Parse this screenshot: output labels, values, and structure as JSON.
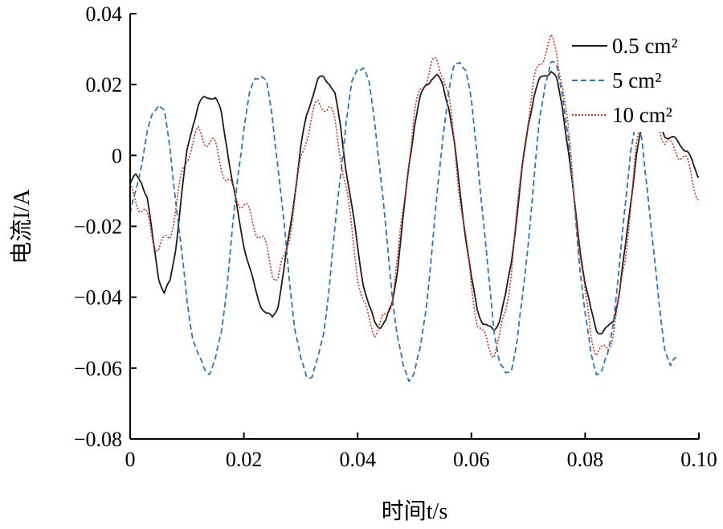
{
  "chart_data": {
    "type": "line",
    "xlabel": "时间t/s",
    "ylabel": "电流I/A",
    "xlim": [
      0,
      0.1
    ],
    "ylim": [
      -0.08,
      0.04
    ],
    "x_ticks": [
      "0",
      "0.02",
      "0.04",
      "0.06",
      "0.08",
      "0.10"
    ],
    "y_ticks": [
      "0.04",
      "0.02",
      "0",
      "−0.02",
      "−0.04",
      "−0.06",
      "−0.08"
    ],
    "grid": false,
    "legend_position": "top-right",
    "series": [
      {
        "name": "0.5 cm²",
        "color": "#231815",
        "style": "solid",
        "x": [
          0.0,
          0.001,
          0.002,
          0.003,
          0.004,
          0.005,
          0.006,
          0.007,
          0.008,
          0.009,
          0.01,
          0.011,
          0.012,
          0.013,
          0.014,
          0.015,
          0.016,
          0.017,
          0.018,
          0.019,
          0.02,
          0.021,
          0.022,
          0.023,
          0.024,
          0.025,
          0.026,
          0.027,
          0.028,
          0.029,
          0.03,
          0.031,
          0.032,
          0.033,
          0.034,
          0.035,
          0.036,
          0.037,
          0.038,
          0.039,
          0.04,
          0.041,
          0.042,
          0.043,
          0.044,
          0.045,
          0.046,
          0.047,
          0.048,
          0.049,
          0.05,
          0.051,
          0.052,
          0.053,
          0.054,
          0.055,
          0.056,
          0.057,
          0.058,
          0.059,
          0.06,
          0.061,
          0.062,
          0.063,
          0.064,
          0.065,
          0.066,
          0.067,
          0.068,
          0.069,
          0.07,
          0.071,
          0.072,
          0.073,
          0.074,
          0.075,
          0.076,
          0.077,
          0.078,
          0.079,
          0.08,
          0.081,
          0.082,
          0.083,
          0.084,
          0.085,
          0.086,
          0.087,
          0.088,
          0.089,
          0.09,
          0.091,
          0.092,
          0.093,
          0.094,
          0.095,
          0.096,
          0.097,
          0.098,
          0.099,
          0.1
        ],
        "y": [
          -0.008,
          -0.006,
          -0.007,
          -0.012,
          -0.024,
          -0.034,
          -0.039,
          -0.036,
          -0.026,
          -0.012,
          0.001,
          0.009,
          0.014,
          0.016,
          0.017,
          0.016,
          0.012,
          0.003,
          -0.008,
          -0.017,
          -0.025,
          -0.032,
          -0.038,
          -0.042,
          -0.045,
          -0.046,
          -0.042,
          -0.033,
          -0.022,
          -0.01,
          0.002,
          0.011,
          0.017,
          0.021,
          0.022,
          0.021,
          0.017,
          0.008,
          -0.004,
          -0.015,
          -0.026,
          -0.036,
          -0.043,
          -0.047,
          -0.048,
          -0.047,
          -0.042,
          -0.032,
          -0.018,
          -0.003,
          0.009,
          0.016,
          0.02,
          0.022,
          0.022,
          0.02,
          0.014,
          0.003,
          -0.01,
          -0.023,
          -0.035,
          -0.043,
          -0.047,
          -0.049,
          -0.049,
          -0.046,
          -0.04,
          -0.03,
          -0.017,
          -0.003,
          0.009,
          0.017,
          0.021,
          0.023,
          0.024,
          0.021,
          0.014,
          0.002,
          -0.012,
          -0.025,
          -0.036,
          -0.044,
          -0.049,
          -0.05,
          -0.049,
          -0.046,
          -0.039,
          -0.027,
          -0.013,
          0.0,
          0.008,
          0.011,
          0.011,
          0.009,
          0.006,
          0.005,
          0.004,
          0.003,
          0.001,
          -0.003,
          -0.006
        ]
      },
      {
        "name": "5 cm²",
        "color": "#2e75b6",
        "style": "dashed",
        "x": [
          0.0,
          0.001,
          0.002,
          0.003,
          0.004,
          0.005,
          0.006,
          0.007,
          0.008,
          0.009,
          0.01,
          0.011,
          0.012,
          0.013,
          0.014,
          0.015,
          0.016,
          0.017,
          0.018,
          0.019,
          0.02,
          0.021,
          0.022,
          0.023,
          0.024,
          0.025,
          0.026,
          0.027,
          0.028,
          0.029,
          0.03,
          0.031,
          0.032,
          0.033,
          0.034,
          0.035,
          0.036,
          0.037,
          0.038,
          0.039,
          0.04,
          0.041,
          0.042,
          0.043,
          0.044,
          0.045,
          0.046,
          0.047,
          0.048,
          0.049,
          0.05,
          0.051,
          0.052,
          0.053,
          0.054,
          0.055,
          0.056,
          0.057,
          0.058,
          0.059,
          0.06,
          0.061,
          0.062,
          0.063,
          0.064,
          0.065,
          0.066,
          0.067,
          0.068,
          0.069,
          0.07,
          0.071,
          0.072,
          0.073,
          0.074,
          0.075,
          0.076,
          0.077,
          0.078,
          0.079,
          0.08,
          0.081,
          0.082,
          0.083,
          0.084,
          0.085,
          0.086,
          0.087,
          0.088,
          0.089,
          0.09,
          0.091,
          0.092,
          0.093,
          0.094,
          0.095,
          0.096
        ],
        "y": [
          -0.017,
          -0.01,
          -0.002,
          0.006,
          0.012,
          0.015,
          0.012,
          0.002,
          -0.012,
          -0.027,
          -0.041,
          -0.051,
          -0.057,
          -0.06,
          -0.061,
          -0.058,
          -0.05,
          -0.037,
          -0.021,
          -0.005,
          0.008,
          0.017,
          0.022,
          0.023,
          0.02,
          0.011,
          -0.003,
          -0.019,
          -0.035,
          -0.049,
          -0.058,
          -0.062,
          -0.062,
          -0.058,
          -0.05,
          -0.037,
          -0.021,
          -0.005,
          0.01,
          0.02,
          0.025,
          0.025,
          0.02,
          0.01,
          -0.005,
          -0.022,
          -0.038,
          -0.051,
          -0.06,
          -0.063,
          -0.061,
          -0.055,
          -0.043,
          -0.028,
          -0.011,
          0.006,
          0.018,
          0.025,
          0.027,
          0.024,
          0.015,
          0.001,
          -0.017,
          -0.034,
          -0.049,
          -0.059,
          -0.062,
          -0.06,
          -0.053,
          -0.04,
          -0.024,
          -0.007,
          0.01,
          0.021,
          0.026,
          0.025,
          0.018,
          0.005,
          -0.012,
          -0.03,
          -0.045,
          -0.056,
          -0.061,
          -0.061,
          -0.056,
          -0.046,
          -0.032,
          -0.015,
          0.002,
          0.01,
          0.004,
          -0.01,
          -0.027,
          -0.042,
          -0.054,
          -0.06,
          -0.057
        ]
      },
      {
        "name": "10 cm²",
        "color": "#c9332c",
        "style": "dotted",
        "x": [
          0.0,
          0.001,
          0.002,
          0.003,
          0.004,
          0.005,
          0.006,
          0.007,
          0.008,
          0.009,
          0.01,
          0.011,
          0.012,
          0.013,
          0.014,
          0.015,
          0.016,
          0.017,
          0.018,
          0.019,
          0.02,
          0.021,
          0.022,
          0.023,
          0.024,
          0.025,
          0.026,
          0.027,
          0.028,
          0.029,
          0.03,
          0.031,
          0.032,
          0.033,
          0.034,
          0.035,
          0.036,
          0.037,
          0.038,
          0.039,
          0.04,
          0.041,
          0.042,
          0.043,
          0.044,
          0.045,
          0.046,
          0.047,
          0.048,
          0.049,
          0.05,
          0.051,
          0.052,
          0.053,
          0.054,
          0.055,
          0.056,
          0.057,
          0.058,
          0.059,
          0.06,
          0.061,
          0.062,
          0.063,
          0.064,
          0.065,
          0.066,
          0.067,
          0.068,
          0.069,
          0.07,
          0.071,
          0.072,
          0.073,
          0.074,
          0.075,
          0.076,
          0.077,
          0.078,
          0.079,
          0.08,
          0.081,
          0.082,
          0.083,
          0.084,
          0.085,
          0.086,
          0.087,
          0.088,
          0.089,
          0.09,
          0.091,
          0.092,
          0.093,
          0.094,
          0.095,
          0.096,
          0.097,
          0.098,
          0.099,
          0.1
        ],
        "y": [
          -0.01,
          -0.012,
          -0.015,
          -0.018,
          -0.023,
          -0.026,
          -0.025,
          -0.022,
          -0.015,
          -0.007,
          0.0,
          0.004,
          0.006,
          0.005,
          0.004,
          0.002,
          -0.002,
          -0.007,
          -0.01,
          -0.012,
          -0.014,
          -0.017,
          -0.02,
          -0.023,
          -0.027,
          -0.032,
          -0.035,
          -0.03,
          -0.022,
          -0.012,
          -0.002,
          0.006,
          0.011,
          0.014,
          0.015,
          0.013,
          0.009,
          0.001,
          -0.01,
          -0.022,
          -0.033,
          -0.042,
          -0.047,
          -0.049,
          -0.048,
          -0.046,
          -0.04,
          -0.03,
          -0.016,
          -0.001,
          0.011,
          0.018,
          0.022,
          0.025,
          0.026,
          0.024,
          0.016,
          0.003,
          -0.011,
          -0.024,
          -0.037,
          -0.046,
          -0.051,
          -0.054,
          -0.055,
          -0.052,
          -0.044,
          -0.032,
          -0.017,
          -0.002,
          0.011,
          0.02,
          0.026,
          0.03,
          0.032,
          0.029,
          0.021,
          0.007,
          -0.01,
          -0.026,
          -0.04,
          -0.05,
          -0.055,
          -0.056,
          -0.054,
          -0.049,
          -0.041,
          -0.029,
          -0.014,
          0.001,
          0.012,
          0.016,
          0.014,
          0.009,
          0.004,
          0.002,
          0.002,
          0.0,
          -0.003,
          -0.007,
          -0.012
        ]
      }
    ]
  }
}
